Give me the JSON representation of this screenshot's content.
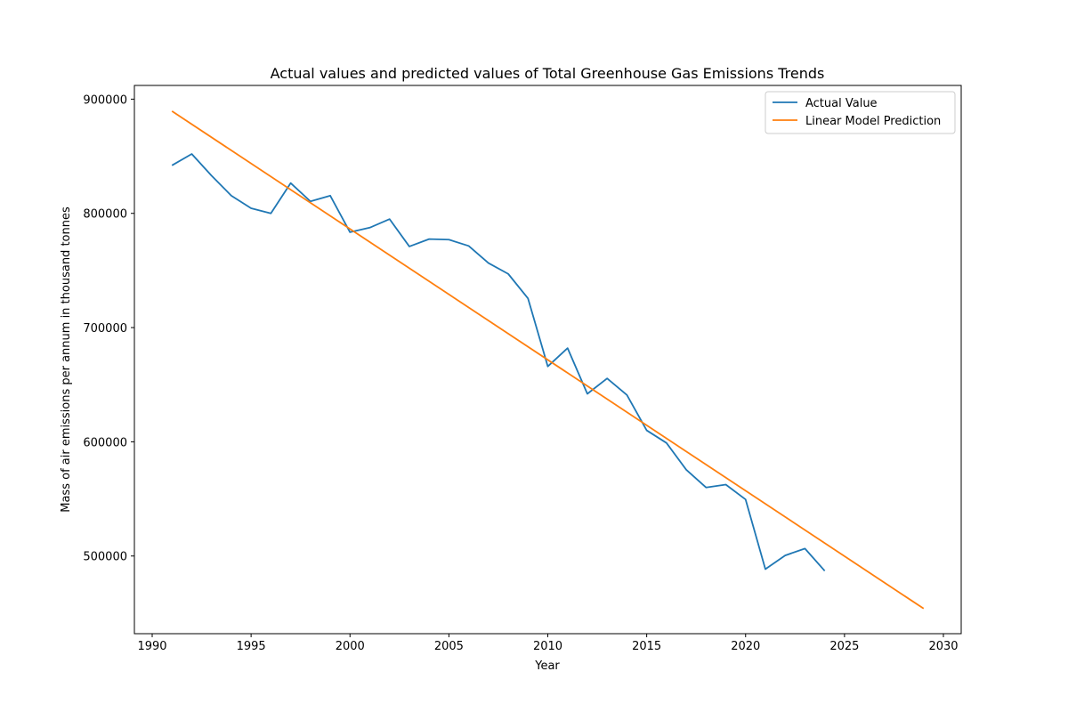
{
  "chart_data": {
    "type": "line",
    "title": "Actual values and predicted values of Total Greenhouse Gas Emissions Trends",
    "xlabel": "Year",
    "ylabel": "Mass of air emissions per annum in thousand tonnes",
    "xlim": [
      1989.1,
      2030.9
    ],
    "ylim": [
      432000,
      912000
    ],
    "xticks": [
      1990,
      1995,
      2000,
      2005,
      2010,
      2015,
      2020,
      2025,
      2030
    ],
    "yticks": [
      500000,
      600000,
      700000,
      800000,
      900000
    ],
    "grid": false,
    "legend_position": "top-right",
    "series": [
      {
        "name": "Actual Value",
        "color": "#1f77b4",
        "x": [
          1991,
          1992,
          1993,
          1994,
          1995,
          1996,
          1997,
          1998,
          1999,
          2000,
          2001,
          2002,
          2003,
          2004,
          2005,
          2006,
          2007,
          2008,
          2009,
          2010,
          2011,
          2012,
          2013,
          2014,
          2015,
          2016,
          2017,
          2018,
          2019,
          2020,
          2021,
          2022,
          2023,
          2024
        ],
        "y": [
          842000,
          852000,
          833000,
          815500,
          804500,
          800000,
          826500,
          810500,
          815500,
          783500,
          787500,
          795000,
          771000,
          777500,
          777000,
          771500,
          756500,
          747000,
          725500,
          666000,
          682000,
          642000,
          655500,
          641000,
          610000,
          599000,
          575500,
          560000,
          562500,
          549500,
          488500,
          500500,
          506500,
          487000
        ]
      },
      {
        "name": "Linear Model Prediction",
        "color": "#ff7f0e",
        "x": [
          1991,
          2029
        ],
        "y": [
          889500,
          454000
        ]
      }
    ]
  }
}
